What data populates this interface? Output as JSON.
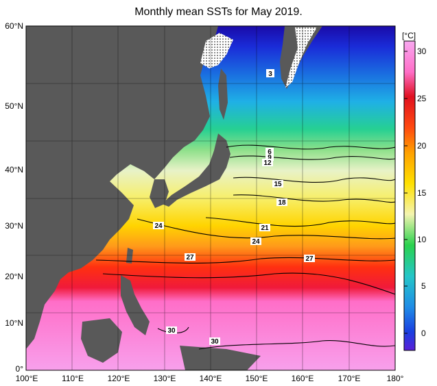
{
  "title": "Monthly mean SSTs for May 2019.",
  "lat_labels": [
    "60°N",
    "50°N",
    "40°N",
    "30°N",
    "20°N",
    "10°N",
    "0°"
  ],
  "lon_labels": [
    "100°E",
    "110°E",
    "120°E",
    "130°E",
    "140°E",
    "150°E",
    "160°E",
    "170°E",
    "180°"
  ],
  "colorbar": {
    "unit": "[°C]",
    "ticks": [
      "30",
      "25",
      "20",
      "15",
      "10",
      "5",
      "0"
    ],
    "colors": [
      "#5a1fd8",
      "#1a3fe0",
      "#1f8ce6",
      "#24c6c8",
      "#2ad24e",
      "#a8e62a",
      "#ffe000",
      "#ffa000",
      "#ff4a10",
      "#e01020",
      "#ff6ec8",
      "#f8a8f0"
    ]
  },
  "contour_labels": [
    "3",
    "6",
    "9",
    "12",
    "15",
    "18",
    "21",
    "24",
    "24",
    "27",
    "27",
    "30",
    "30"
  ],
  "colors": {
    "land": "#595959",
    "ice": "#ffffff"
  }
}
